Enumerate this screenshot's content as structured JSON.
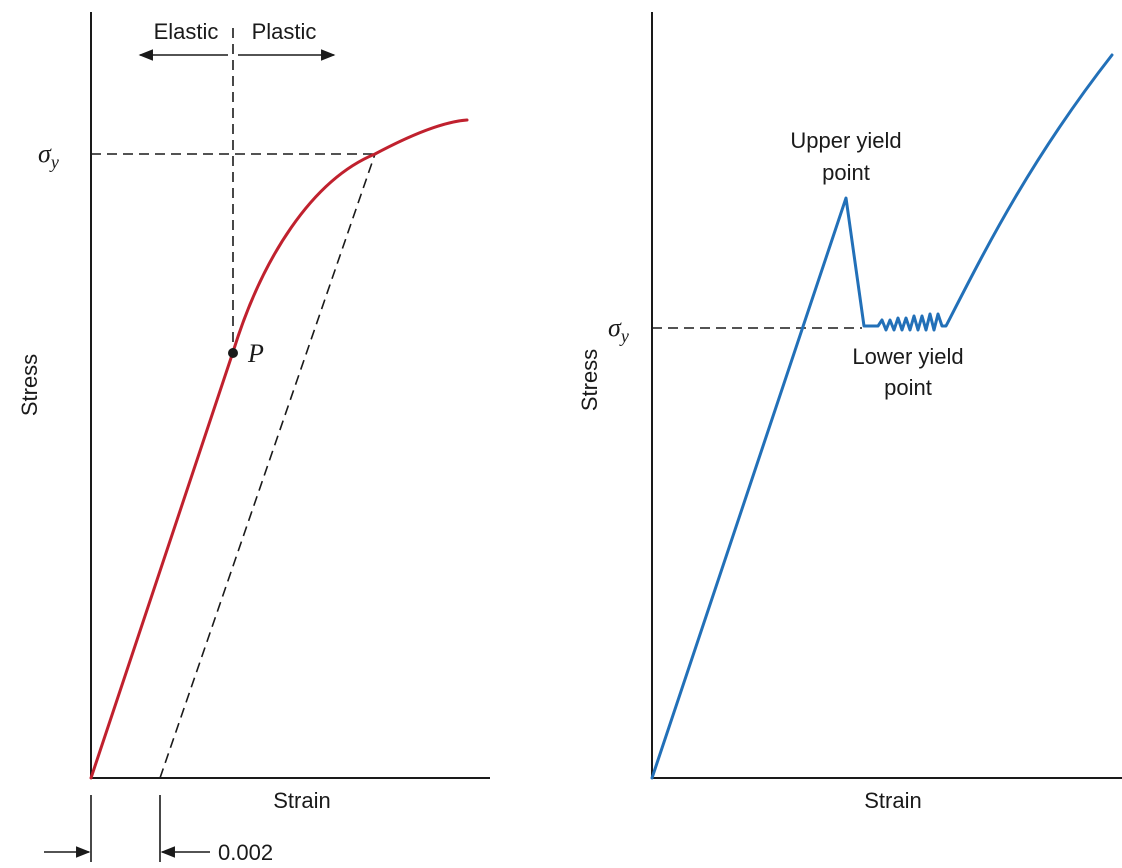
{
  "left_panel": {
    "y_label": "Stress",
    "x_label": "Strain",
    "yield_symbol": "σ",
    "yield_subscript": "y",
    "elastic_label": "Elastic",
    "plastic_label": "Plastic",
    "point_label": "P",
    "offset_label": "0.002",
    "curve_color": "#c0212e"
  },
  "right_panel": {
    "y_label": "Stress",
    "x_label": "Strain",
    "yield_symbol": "σ",
    "yield_subscript": "y",
    "upper_yield_line1": "Upper yield",
    "upper_yield_line2": "point",
    "lower_yield_line1": "Lower yield",
    "lower_yield_line2": "point",
    "curve_color": "#2270b8"
  }
}
